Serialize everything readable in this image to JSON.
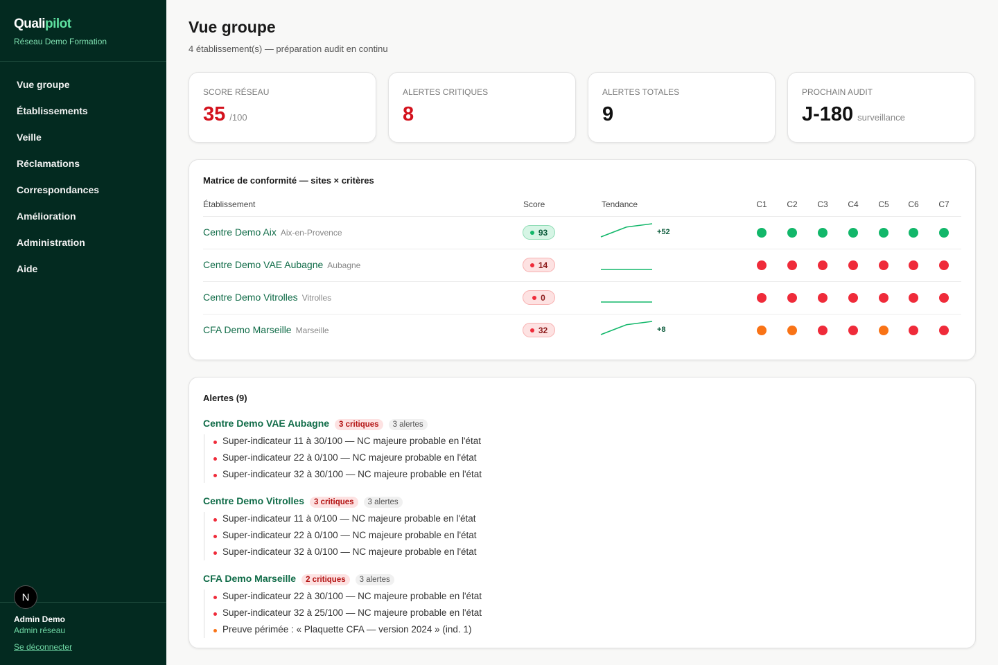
{
  "sidebar": {
    "brand": [
      "Quali",
      "pilot"
    ],
    "network": "Réseau Demo Formation",
    "nav": [
      "Vue groupe",
      "Établissements",
      "Veille",
      "Réclamations",
      "Correspondances",
      "Amélioration",
      "Administration",
      "Aide"
    ],
    "avatar": "N",
    "user": "Admin Demo",
    "role": "Admin réseau",
    "logout": "Se déconnecter"
  },
  "header": {
    "title": "Vue groupe",
    "subtitle": "4 établissement(s) — préparation audit en continu"
  },
  "kpis": [
    {
      "label": "SCORE RÉSEAU",
      "value": 35,
      "unit": "/100",
      "color": "#d3121d"
    },
    {
      "label": "ALERTES CRITIQUES",
      "value": 8,
      "color": "#d3121d"
    },
    {
      "label": "ALERTES TOTALES",
      "value": 9,
      "color": "#111111"
    },
    {
      "label": "PROCHAIN AUDIT",
      "value": "J-180",
      "unit": "surveillance",
      "color": "#111111"
    }
  ],
  "matrix": {
    "title": "Matrice de conformité — sites × critères",
    "columns": [
      "Établissement",
      "Score",
      "Tendance",
      "C1",
      "C2",
      "C3",
      "C4",
      "C5",
      "C6",
      "C7"
    ],
    "rows": [
      {
        "name": "Centre Demo Aix",
        "city": "Aix-en-Provence",
        "score": 93,
        "badge": "green",
        "trend": [
          41,
          80,
          93
        ],
        "delta": "+52",
        "criteria": [
          "#12b76a",
          "#12b76a",
          "#12b76a",
          "#12b76a",
          "#12b76a",
          "#12b76a",
          "#12b76a"
        ]
      },
      {
        "name": "Centre Demo VAE Aubagne",
        "city": "Aubagne",
        "score": 14,
        "badge": "red",
        "trend": [
          14,
          14
        ],
        "criteria": [
          "#ef2b3a",
          "#ef2b3a",
          "#ef2b3a",
          "#ef2b3a",
          "#ef2b3a",
          "#ef2b3a",
          "#ef2b3a"
        ]
      },
      {
        "name": "Centre Demo Vitrolles",
        "city": "Vitrolles",
        "score": 0,
        "badge": "red",
        "trend": [
          0,
          0
        ],
        "criteria": [
          "#ef2b3a",
          "#ef2b3a",
          "#ef2b3a",
          "#ef2b3a",
          "#ef2b3a",
          "#ef2b3a",
          "#ef2b3a"
        ]
      },
      {
        "name": "CFA Demo Marseille",
        "city": "Marseille",
        "score": 32,
        "badge": "red",
        "trend": [
          24,
          30,
          32
        ],
        "delta": "+8",
        "criteria": [
          "#f97316",
          "#f97316",
          "#ef2b3a",
          "#ef2b3a",
          "#f97316",
          "#ef2b3a",
          "#ef2b3a"
        ]
      }
    ]
  },
  "alerts": {
    "title": "Alertes (9)",
    "groups": [
      {
        "site": "Centre Demo VAE Aubagne",
        "critical": "3 critiques",
        "total": "3 alertes",
        "items": [
          {
            "text": "Super-indicateur 11 à 30/100 — NC majeure probable en l'état",
            "color": "#ef2b3a"
          },
          {
            "text": "Super-indicateur 22 à 0/100 — NC majeure probable en l'état",
            "color": "#ef2b3a"
          },
          {
            "text": "Super-indicateur 32 à 30/100 — NC majeure probable en l'état",
            "color": "#ef2b3a"
          }
        ]
      },
      {
        "site": "Centre Demo Vitrolles",
        "critical": "3 critiques",
        "total": "3 alertes",
        "items": [
          {
            "text": "Super-indicateur 11 à 0/100 — NC majeure probable en l'état",
            "color": "#ef2b3a"
          },
          {
            "text": "Super-indicateur 22 à 0/100 — NC majeure probable en l'état",
            "color": "#ef2b3a"
          },
          {
            "text": "Super-indicateur 32 à 0/100 — NC majeure probable en l'état",
            "color": "#ef2b3a"
          }
        ]
      },
      {
        "site": "CFA Demo Marseille",
        "critical": "2 critiques",
        "total": "3 alertes",
        "items": [
          {
            "text": "Super-indicateur 22 à 30/100 — NC majeure probable en l'état",
            "color": "#ef2b3a"
          },
          {
            "text": "Super-indicateur 32 à 25/100 — NC majeure probable en l'état",
            "color": "#ef2b3a"
          },
          {
            "text": "Preuve périmée : « Plaquette CFA — version 2024 » (ind. 1)",
            "color": "#f97316"
          }
        ]
      }
    ]
  }
}
